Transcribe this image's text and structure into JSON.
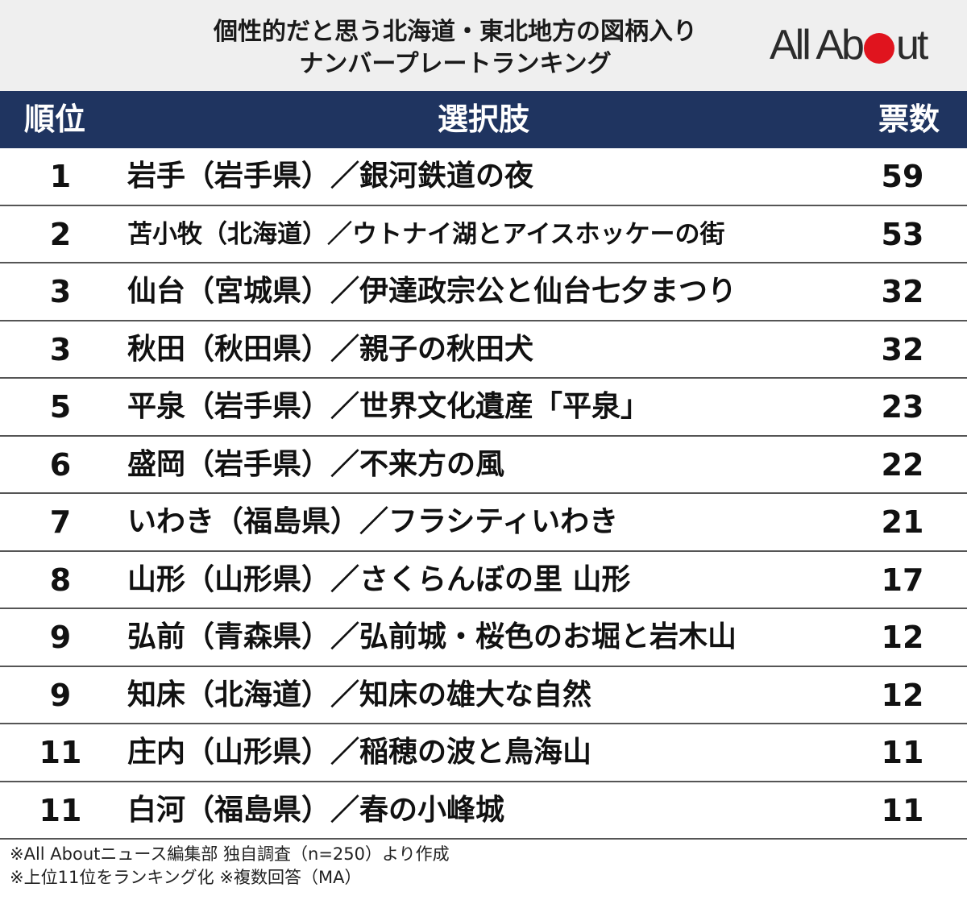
{
  "header": {
    "title_line1": "個性的だと思う北海道・東北地方の図柄入り",
    "title_line2": "ナンバープレートランキング",
    "logo_text_left": "All Ab",
    "logo_text_right": "ut"
  },
  "colors": {
    "header_bg": "#efefef",
    "column_header_bg": "#1f3460",
    "logo_dot": "#e0141e"
  },
  "columns": {
    "rank": "順位",
    "choice": "選択肢",
    "votes": "票数"
  },
  "chart_data": {
    "type": "table",
    "title": "個性的だと思う北海道・東北地方の図柄入りナンバープレートランキング",
    "columns": [
      "順位",
      "選択肢",
      "票数"
    ],
    "rows": [
      {
        "rank": "1",
        "choice": "岩手（岩手県）／銀河鉄道の夜",
        "votes": "59"
      },
      {
        "rank": "2",
        "choice": "苫小牧（北海道）／ウトナイ湖とアイスホッケーの街",
        "votes": "53"
      },
      {
        "rank": "3",
        "choice": "仙台（宮城県）／伊達政宗公と仙台七夕まつり",
        "votes": "32"
      },
      {
        "rank": "3",
        "choice": "秋田（秋田県）／親子の秋田犬",
        "votes": "32"
      },
      {
        "rank": "5",
        "choice": "平泉（岩手県）／世界文化遺産「平泉」",
        "votes": "23"
      },
      {
        "rank": "6",
        "choice": "盛岡（岩手県）／不来方の風",
        "votes": "22"
      },
      {
        "rank": "7",
        "choice": "いわき（福島県）／フラシティいわき",
        "votes": "21"
      },
      {
        "rank": "8",
        "choice": "山形（山形県）／さくらんぼの里 山形",
        "votes": "17"
      },
      {
        "rank": "9",
        "choice": "弘前（青森県）／弘前城・桜色のお堀と岩木山",
        "votes": "12"
      },
      {
        "rank": "9",
        "choice": "知床（北海道）／知床の雄大な自然",
        "votes": "12"
      },
      {
        "rank": "11",
        "choice": "庄内（山形県）／稲穂の波と鳥海山",
        "votes": "11"
      },
      {
        "rank": "11",
        "choice": "白河（福島県）／春の小峰城",
        "votes": "11"
      }
    ]
  },
  "footer": {
    "line1": "※All Aboutニュース編集部 独自調査（n=250）より作成",
    "line2": "※上位11位をランキング化 ※複数回答（MA）"
  }
}
